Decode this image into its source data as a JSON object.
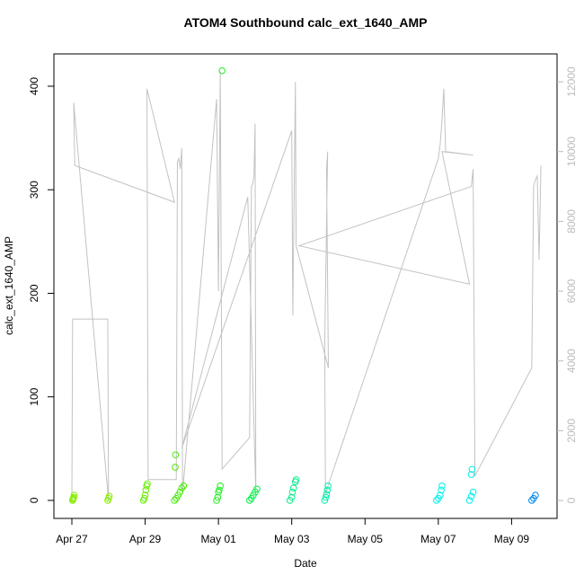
{
  "chart_data": {
    "type": "scatter",
    "title": "ATOM4 Southbound calc_ext_1640_AMP",
    "x_label": "Date",
    "y_label": "calc_ext_1640_AMP",
    "xlim": [
      -0.49,
      13.24
    ],
    "ylim": [
      -17.4,
      431.2
    ],
    "y2lim": [
      -515,
      12800
    ],
    "xticks": [
      {
        "value": 0,
        "label": "Apr 27"
      },
      {
        "value": 2,
        "label": "Apr 29"
      },
      {
        "value": 4,
        "label": "May 01"
      },
      {
        "value": 6,
        "label": "May 03"
      },
      {
        "value": 8,
        "label": "May 05"
      },
      {
        "value": 10,
        "label": "May 07"
      },
      {
        "value": 12,
        "label": "May 09"
      }
    ],
    "yticks": [
      0,
      100,
      200,
      300,
      400
    ],
    "y2ticks": [
      0,
      2000,
      4000,
      6000,
      8000,
      10000,
      12000
    ],
    "series": [
      {
        "color": "#999999",
        "mode": "line",
        "axis": "y2",
        "x": [
          0.0,
          0.02,
          0.98,
          1.0,
          0.05,
          0.08,
          2.8,
          2.05,
          2.08,
          2.85,
          2.88,
          2.92,
          2.96,
          3.0,
          3.02,
          3.95,
          4.0,
          4.05,
          4.1,
          4.85,
          4.9,
          4.93,
          4.97,
          5.0,
          5.02,
          4.8,
          3.0,
          6.0,
          6.03,
          6.06,
          6.1,
          6.12,
          7.0,
          6.95,
          6.98,
          6.9,
          6.92,
          10.0,
          10.05,
          10.1,
          10.15,
          10.2,
          10.95,
          10.1,
          10.85,
          6.2,
          10.9,
          10.95,
          11.0,
          12.55,
          12.6,
          12.65,
          12.7,
          12.75,
          12.8
        ],
        "values": [
          0,
          5200,
          5200,
          0,
          11400,
          9600,
          8550,
          11800,
          600,
          600,
          9700,
          9800,
          9500,
          10100,
          200,
          11500,
          6000,
          12300,
          900,
          1800,
          9000,
          9050,
          9300,
          10800,
          200,
          8700,
          1500,
          10600,
          5300,
          8200,
          12000,
          7300,
          3800,
          9500,
          10000,
          4500,
          200,
          9800,
          10200,
          10900,
          11800,
          10000,
          9900,
          10000,
          6200,
          7300,
          9000,
          9500,
          700,
          3800,
          9000,
          9200,
          9300,
          6900,
          9600
        ]
      },
      {
        "color": "#88ee00",
        "x": [
          0.02,
          0.03,
          0.04,
          0.05,
          0.06
        ],
        "values": [
          0,
          1,
          2,
          3,
          5
        ]
      },
      {
        "color": "#88ee00",
        "x": [
          0.98,
          1.0,
          1.02
        ],
        "values": [
          0,
          2,
          4
        ]
      },
      {
        "color": "#66ee00",
        "x": [
          1.95,
          1.98,
          2.0,
          2.02,
          2.04,
          2.06
        ],
        "values": [
          0,
          2,
          5,
          10,
          14,
          16
        ]
      },
      {
        "color": "#44ee00",
        "x": [
          2.8,
          2.85,
          2.9,
          2.95,
          3.0,
          2.82,
          2.83,
          3.05
        ],
        "values": [
          0,
          2,
          5,
          8,
          12,
          32,
          44,
          14
        ]
      },
      {
        "color": "#22ee22",
        "x": [
          3.95,
          3.98,
          4.0,
          4.05,
          4.1,
          4.02
        ],
        "values": [
          0,
          3,
          8,
          14,
          415,
          10
        ]
      },
      {
        "color": "#00ee44",
        "x": [
          4.85,
          4.9,
          4.95,
          5.0,
          5.05
        ],
        "values": [
          0,
          2,
          5,
          8,
          11
        ]
      },
      {
        "color": "#00ee88",
        "x": [
          5.95,
          6.0,
          6.02,
          6.05,
          6.1,
          6.12
        ],
        "values": [
          0,
          3,
          8,
          12,
          18,
          20
        ]
      },
      {
        "color": "#00eeaa",
        "x": [
          6.9,
          6.93,
          6.95,
          6.97,
          6.99
        ],
        "values": [
          0,
          3,
          6,
          10,
          14
        ]
      },
      {
        "color": "#00eeee",
        "x": [
          9.95,
          10.0,
          10.05,
          10.08,
          10.1
        ],
        "values": [
          0,
          2,
          5,
          10,
          14
        ]
      },
      {
        "color": "#00eeee",
        "x": [
          10.85,
          10.9,
          10.95,
          10.9,
          10.92
        ],
        "values": [
          0,
          4,
          8,
          25,
          30
        ]
      },
      {
        "color": "#0088ee",
        "x": [
          12.55,
          12.6,
          12.65
        ],
        "values": [
          0,
          2,
          5
        ]
      }
    ]
  }
}
